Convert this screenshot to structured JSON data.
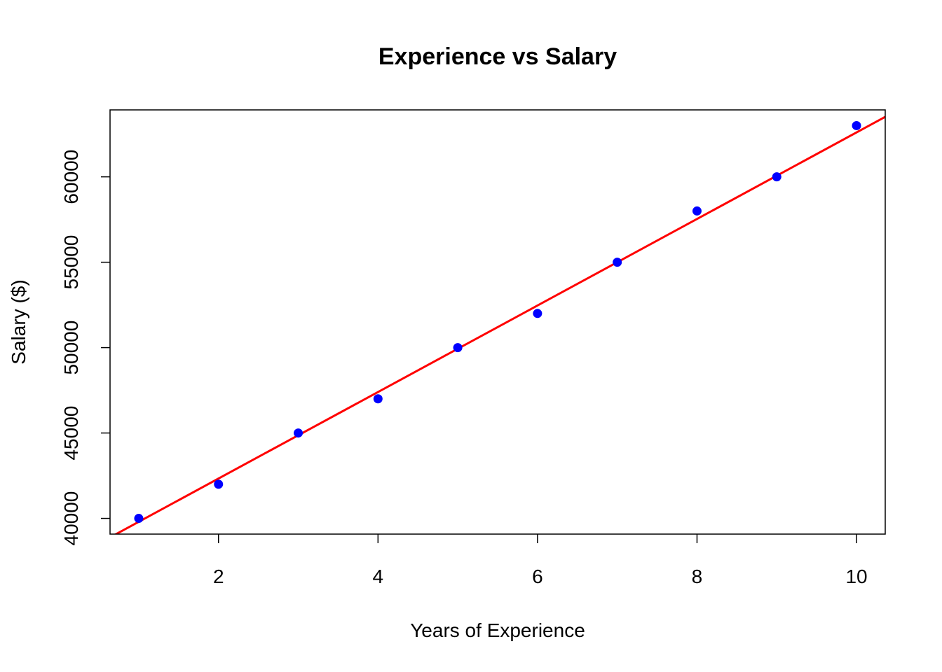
{
  "chart_data": {
    "type": "scatter",
    "title": "Experience vs Salary",
    "xlabel": "Years of Experience",
    "ylabel": "Salary ($)",
    "xlim": [
      0.64,
      10.36
    ],
    "ylim": [
      39080,
      63920
    ],
    "xticks": [
      2,
      4,
      6,
      8,
      10
    ],
    "xtick_labels": [
      "2",
      "4",
      "6",
      "8",
      "10"
    ],
    "yticks": [
      40000,
      45000,
      50000,
      55000,
      60000
    ],
    "ytick_labels": [
      "40000",
      "45000",
      "50000",
      "55000",
      "60000"
    ],
    "grid": false,
    "legend": null,
    "points": {
      "x": [
        1,
        2,
        3,
        4,
        5,
        6,
        7,
        8,
        9,
        10
      ],
      "y": [
        40000,
        42000,
        45000,
        47000,
        50000,
        52000,
        55000,
        58000,
        60000,
        63000
      ],
      "color": "#0000FF"
    },
    "regression_line": {
      "intercept": 37266.67,
      "slope": 2533.33,
      "color": "#FF0000"
    }
  }
}
